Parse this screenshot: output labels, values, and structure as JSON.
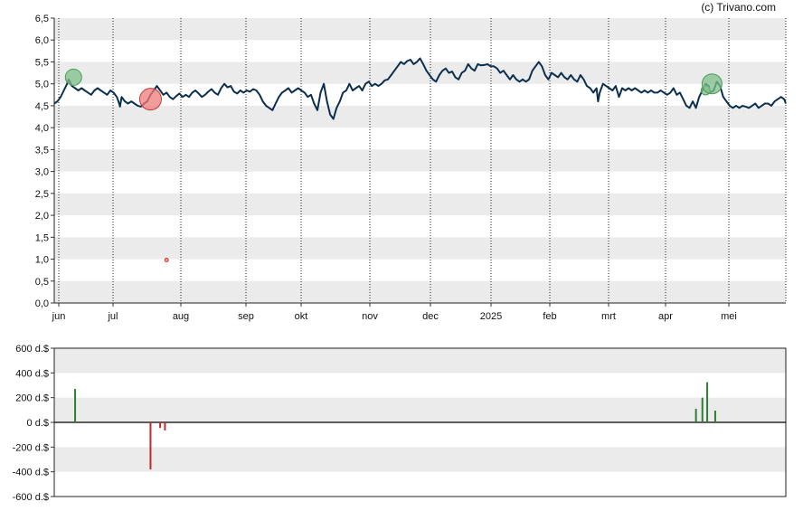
{
  "credit": "(c) Trivano.com",
  "chart_data": [
    {
      "type": "line",
      "ylim": [
        0,
        6.5
      ],
      "y_ticks": [
        "0,0",
        "0,5",
        "1,0",
        "1,5",
        "2,0",
        "2,5",
        "3,0",
        "3,5",
        "4,0",
        "4,5",
        "5,0",
        "5,5",
        "6,0",
        "6,5"
      ],
      "x_ticks": [
        "jun",
        "jul",
        "aug",
        "sep",
        "okt",
        "nov",
        "dec",
        "2025",
        "feb",
        "mrt",
        "apr",
        "mei"
      ],
      "grid": true,
      "series": [
        {
          "line_color": "#0d2f4f",
          "points": [
            [
              0,
              4.55
            ],
            [
              2,
              4.6
            ],
            [
              4,
              4.7
            ],
            [
              6,
              4.85
            ],
            [
              8,
              5.0
            ],
            [
              9,
              5.1
            ],
            [
              11,
              4.95
            ],
            [
              13,
              4.9
            ],
            [
              15,
              4.85
            ],
            [
              17,
              4.9
            ],
            [
              19,
              4.85
            ],
            [
              21,
              4.8
            ],
            [
              23,
              4.75
            ],
            [
              25,
              4.85
            ],
            [
              27,
              4.9
            ],
            [
              29,
              4.85
            ],
            [
              31,
              4.8
            ],
            [
              33,
              4.75
            ],
            [
              35,
              4.85
            ],
            [
              37,
              4.8
            ],
            [
              39,
              4.7
            ],
            [
              40,
              4.6
            ],
            [
              41,
              4.48
            ],
            [
              42,
              4.7
            ],
            [
              44,
              4.6
            ],
            [
              46,
              4.55
            ],
            [
              48,
              4.6
            ],
            [
              50,
              4.55
            ],
            [
              52,
              4.5
            ],
            [
              54,
              4.48
            ],
            [
              56,
              4.55
            ],
            [
              58,
              4.6
            ],
            [
              60,
              4.75
            ],
            [
              62,
              4.85
            ],
            [
              64,
              4.95
            ],
            [
              66,
              4.85
            ],
            [
              68,
              4.75
            ],
            [
              70,
              4.8
            ],
            [
              72,
              4.7
            ],
            [
              74,
              4.65
            ],
            [
              76,
              4.72
            ],
            [
              78,
              4.78
            ],
            [
              80,
              4.7
            ],
            [
              82,
              4.75
            ],
            [
              84,
              4.7
            ],
            [
              86,
              4.8
            ],
            [
              88,
              4.85
            ],
            [
              90,
              4.78
            ],
            [
              92,
              4.7
            ],
            [
              94,
              4.75
            ],
            [
              96,
              4.82
            ],
            [
              98,
              4.88
            ],
            [
              100,
              4.8
            ],
            [
              102,
              4.75
            ],
            [
              104,
              4.9
            ],
            [
              106,
              5.0
            ],
            [
              108,
              4.92
            ],
            [
              110,
              4.95
            ],
            [
              112,
              4.82
            ],
            [
              114,
              4.78
            ],
            [
              116,
              4.85
            ],
            [
              118,
              4.8
            ],
            [
              120,
              4.85
            ],
            [
              122,
              4.82
            ],
            [
              124,
              4.88
            ],
            [
              126,
              4.85
            ],
            [
              128,
              4.75
            ],
            [
              130,
              4.6
            ],
            [
              132,
              4.5
            ],
            [
              134,
              4.45
            ],
            [
              136,
              4.4
            ],
            [
              138,
              4.55
            ],
            [
              140,
              4.7
            ],
            [
              142,
              4.8
            ],
            [
              144,
              4.85
            ],
            [
              146,
              4.9
            ],
            [
              148,
              4.8
            ],
            [
              150,
              4.85
            ],
            [
              152,
              4.9
            ],
            [
              154,
              4.85
            ],
            [
              156,
              4.8
            ],
            [
              158,
              4.7
            ],
            [
              160,
              4.75
            ],
            [
              162,
              4.55
            ],
            [
              164,
              4.4
            ],
            [
              166,
              4.8
            ],
            [
              168,
              5.0
            ],
            [
              170,
              4.6
            ],
            [
              172,
              4.3
            ],
            [
              174,
              4.2
            ],
            [
              176,
              4.45
            ],
            [
              178,
              4.6
            ],
            [
              180,
              4.8
            ],
            [
              182,
              4.85
            ],
            [
              184,
              5.0
            ],
            [
              186,
              4.85
            ],
            [
              188,
              4.9
            ],
            [
              190,
              4.95
            ],
            [
              192,
              4.85
            ],
            [
              194,
              5.0
            ],
            [
              196,
              5.05
            ],
            [
              198,
              4.95
            ],
            [
              200,
              5.0
            ],
            [
              202,
              4.95
            ],
            [
              204,
              5.0
            ],
            [
              206,
              5.08
            ],
            [
              208,
              5.1
            ],
            [
              210,
              5.2
            ],
            [
              212,
              5.3
            ],
            [
              214,
              5.4
            ],
            [
              216,
              5.5
            ],
            [
              218,
              5.45
            ],
            [
              220,
              5.52
            ],
            [
              222,
              5.55
            ],
            [
              224,
              5.45
            ],
            [
              226,
              5.5
            ],
            [
              228,
              5.58
            ],
            [
              230,
              5.45
            ],
            [
              232,
              5.3
            ],
            [
              234,
              5.2
            ],
            [
              236,
              5.1
            ],
            [
              238,
              5.05
            ],
            [
              240,
              5.2
            ],
            [
              242,
              5.3
            ],
            [
              244,
              5.35
            ],
            [
              246,
              5.25
            ],
            [
              248,
              5.28
            ],
            [
              250,
              5.15
            ],
            [
              252,
              5.1
            ],
            [
              254,
              5.25
            ],
            [
              256,
              5.3
            ],
            [
              258,
              5.45
            ],
            [
              260,
              5.35
            ],
            [
              262,
              5.3
            ],
            [
              264,
              5.45
            ],
            [
              266,
              5.42
            ],
            [
              268,
              5.43
            ],
            [
              270,
              5.45
            ],
            [
              272,
              5.4
            ],
            [
              274,
              5.4
            ],
            [
              276,
              5.35
            ],
            [
              278,
              5.25
            ],
            [
              280,
              5.3
            ],
            [
              282,
              5.2
            ],
            [
              284,
              5.1
            ],
            [
              286,
              5.2
            ],
            [
              288,
              5.1
            ],
            [
              290,
              5.05
            ],
            [
              292,
              5.1
            ],
            [
              294,
              5.05
            ],
            [
              296,
              5.1
            ],
            [
              298,
              5.3
            ],
            [
              300,
              5.4
            ],
            [
              302,
              5.5
            ],
            [
              304,
              5.4
            ],
            [
              306,
              5.2
            ],
            [
              308,
              5.1
            ],
            [
              310,
              5.25
            ],
            [
              312,
              5.2
            ],
            [
              314,
              5.15
            ],
            [
              316,
              5.25
            ],
            [
              318,
              5.15
            ],
            [
              320,
              5.1
            ],
            [
              322,
              5.2
            ],
            [
              324,
              5.1
            ],
            [
              326,
              5.05
            ],
            [
              328,
              5.2
            ],
            [
              330,
              5.1
            ],
            [
              332,
              4.95
            ],
            [
              334,
              4.9
            ],
            [
              336,
              4.8
            ],
            [
              338,
              4.9
            ],
            [
              339,
              4.6
            ],
            [
              340,
              4.8
            ],
            [
              342,
              5.0
            ],
            [
              344,
              4.95
            ],
            [
              346,
              4.9
            ],
            [
              348,
              4.85
            ],
            [
              350,
              4.95
            ],
            [
              352,
              4.7
            ],
            [
              354,
              4.9
            ],
            [
              356,
              4.85
            ],
            [
              358,
              4.9
            ],
            [
              360,
              4.85
            ],
            [
              362,
              4.9
            ],
            [
              364,
              4.85
            ],
            [
              366,
              4.8
            ],
            [
              368,
              4.85
            ],
            [
              370,
              4.8
            ],
            [
              372,
              4.85
            ],
            [
              374,
              4.8
            ],
            [
              376,
              4.8
            ],
            [
              378,
              4.85
            ],
            [
              380,
              4.8
            ],
            [
              382,
              4.75
            ],
            [
              384,
              4.8
            ],
            [
              386,
              4.9
            ],
            [
              388,
              4.75
            ],
            [
              390,
              4.8
            ],
            [
              392,
              4.65
            ],
            [
              394,
              4.5
            ],
            [
              396,
              4.45
            ],
            [
              398,
              4.6
            ],
            [
              400,
              4.45
            ],
            [
              402,
              4.7
            ],
            [
              404,
              4.85
            ],
            [
              406,
              5.0
            ],
            [
              408,
              4.95
            ],
            [
              409,
              4.8
            ],
            [
              411,
              4.85
            ],
            [
              413,
              5.05
            ],
            [
              415,
              4.95
            ],
            [
              417,
              4.7
            ],
            [
              419,
              4.6
            ],
            [
              421,
              4.5
            ],
            [
              423,
              4.45
            ],
            [
              425,
              4.5
            ],
            [
              427,
              4.45
            ],
            [
              429,
              4.5
            ],
            [
              431,
              4.48
            ],
            [
              433,
              4.45
            ],
            [
              435,
              4.5
            ],
            [
              437,
              4.55
            ],
            [
              439,
              4.45
            ],
            [
              441,
              4.5
            ],
            [
              443,
              4.55
            ],
            [
              445,
              4.55
            ],
            [
              447,
              4.5
            ],
            [
              449,
              4.6
            ],
            [
              451,
              4.65
            ],
            [
              453,
              4.7
            ],
            [
              455,
              4.65
            ],
            [
              456,
              4.55
            ]
          ]
        }
      ],
      "markers": [
        {
          "type": "buy",
          "x": 12,
          "y": 5.15,
          "r": 9,
          "color": "#7fbf8a",
          "stroke": "#4a9b59"
        },
        {
          "type": "sell",
          "x": 60,
          "y": 4.65,
          "r": 12,
          "color": "#ef7b7b",
          "stroke": "#c53838"
        },
        {
          "type": "sell",
          "x": 70,
          "y": 0.98,
          "r": 2,
          "color": "#ef7b7b",
          "stroke": "#c53838"
        },
        {
          "type": "buy",
          "x": 406,
          "y": 4.85,
          "r": 5,
          "color": "#7fbf8a",
          "stroke": "#4a9b59"
        },
        {
          "type": "buy",
          "x": 410,
          "y": 5.0,
          "r": 11,
          "color": "#7fbf8a",
          "stroke": "#4a9b59"
        }
      ]
    },
    {
      "type": "bar",
      "ylim": [
        -600,
        600
      ],
      "y_ticks": [
        "600 d.$",
        "400 d.$",
        "200 d.$",
        "0 d.$",
        "-200 d.$",
        "-400 d.$",
        "-600 d.$"
      ],
      "grid": true,
      "bars": [
        {
          "x": 13,
          "value": 270,
          "color": "#2e7d32"
        },
        {
          "x": 60,
          "value": -380,
          "color": "#c62828"
        },
        {
          "x": 66,
          "value": -45,
          "color": "#c62828"
        },
        {
          "x": 69,
          "value": -65,
          "color": "#c62828"
        },
        {
          "x": 400,
          "value": 110,
          "color": "#2e7d32"
        },
        {
          "x": 404,
          "value": 200,
          "color": "#2e7d32"
        },
        {
          "x": 407,
          "value": 325,
          "color": "#2e7d32"
        },
        {
          "x": 412,
          "value": 95,
          "color": "#2e7d32"
        }
      ]
    }
  ]
}
